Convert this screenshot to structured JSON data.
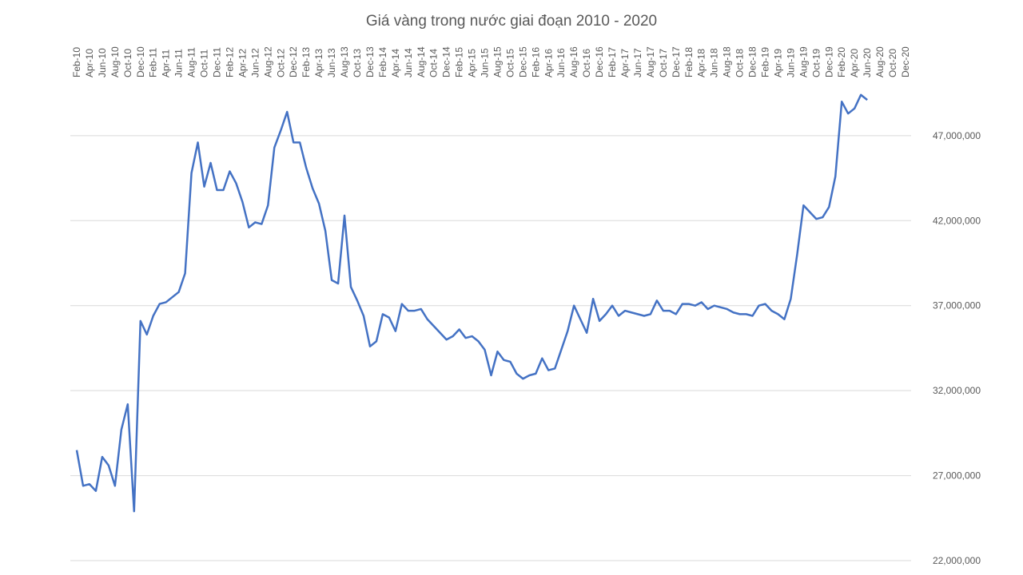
{
  "chart_data": {
    "type": "line",
    "title": "Giá vàng trong nước giai đoạn 2010 - 2020",
    "categories": [
      "Feb-10",
      null,
      "Apr-10",
      null,
      "Jun-10",
      null,
      "Aug-10",
      null,
      "Oct-10",
      null,
      "Dec-10",
      null,
      "Feb-11",
      null,
      "Apr-11",
      null,
      "Jun-11",
      null,
      "Aug-11",
      null,
      "Oct-11",
      null,
      "Dec-11",
      null,
      "Feb-12",
      null,
      "Apr-12",
      null,
      "Jun-12",
      null,
      "Aug-12",
      null,
      "Oct-12",
      null,
      "Dec-12",
      null,
      "Feb-13",
      null,
      "Apr-13",
      null,
      "Jun-13",
      null,
      "Aug-13",
      null,
      "Oct-13",
      null,
      "Dec-13",
      null,
      "Feb-14",
      null,
      "Apr-14",
      null,
      "Jun-14",
      null,
      "Aug-14",
      null,
      "Oct-14",
      null,
      "Dec-14",
      null,
      "Feb-15",
      null,
      "Apr-15",
      null,
      "Jun-15",
      null,
      "Aug-15",
      null,
      "Oct-15",
      null,
      "Dec-15",
      null,
      "Feb-16",
      null,
      "Apr-16",
      null,
      "Jun-16",
      null,
      "Aug-16",
      null,
      "Oct-16",
      null,
      "Dec-16",
      null,
      "Feb-17",
      null,
      "Apr-17",
      null,
      "Jun-17",
      null,
      "Aug-17",
      null,
      "Oct-17",
      null,
      "Dec-17",
      null,
      "Feb-18",
      null,
      "Apr-18",
      null,
      "Jun-18",
      null,
      "Aug-18",
      null,
      "Oct-18",
      null,
      "Dec-18",
      null,
      "Feb-19",
      null,
      "Apr-19",
      null,
      "Jun-19",
      null,
      "Aug-19",
      null,
      "Oct-19",
      null,
      "Dec-19",
      null,
      "Feb-20",
      null,
      "Apr-20",
      null,
      "Jun-20",
      null,
      "Aug-20",
      null,
      "Oct-20",
      null,
      "Dec-20"
    ],
    "series": [
      {
        "color": "#4472c4",
        "values": [
          28500000,
          26400000,
          26500000,
          26100000,
          28100000,
          27600000,
          26400000,
          29700000,
          31200000,
          24900000,
          36100000,
          35300000,
          36400000,
          37100000,
          37200000,
          37500000,
          37800000,
          38900000,
          44800000,
          46600000,
          44000000,
          45400000,
          43800000,
          43800000,
          44900000,
          44200000,
          43100000,
          41600000,
          41900000,
          41800000,
          42900000,
          46300000,
          47300000,
          48400000,
          46600000,
          46600000,
          45100000,
          43900000,
          43000000,
          41400000,
          38500000,
          38300000,
          42300000,
          38100000,
          37300000,
          36400000,
          34600000,
          34900000,
          36500000,
          36300000,
          35500000,
          37100000,
          36700000,
          36700000,
          36800000,
          36200000,
          35800000,
          35400000,
          35000000,
          35200000,
          35600000,
          35100000,
          35200000,
          34900000,
          34400000,
          32900000,
          34300000,
          33800000,
          33700000,
          33000000,
          32700000,
          32900000,
          33000000,
          33900000,
          33200000,
          33300000,
          34400000,
          35500000,
          37000000,
          36200000,
          35400000,
          37400000,
          36100000,
          36500000,
          37000000,
          36400000,
          36700000,
          36600000,
          36500000,
          36400000,
          36500000,
          37300000,
          36700000,
          36700000,
          36500000,
          37100000,
          37100000,
          37000000,
          37200000,
          36800000,
          37000000,
          36900000,
          36800000,
          36600000,
          36500000,
          36500000,
          36400000,
          37000000,
          37100000,
          36700000,
          36500000,
          36200000,
          37400000,
          40000000,
          42900000,
          42500000,
          42100000,
          42200000,
          42800000,
          44600000,
          49000000,
          48300000,
          48600000,
          49400000,
          49100000,
          null,
          null,
          null,
          null,
          null,
          null
        ]
      }
    ],
    "ylim": [
      22000000,
      50000000
    ],
    "yticks": [
      {
        "value": 22000000,
        "label": "22,000,000"
      },
      {
        "value": 27000000,
        "label": "27,000,000"
      },
      {
        "value": 32000000,
        "label": "32,000,000"
      },
      {
        "value": 37000000,
        "label": "37,000,000"
      },
      {
        "value": 42000000,
        "label": "42,000,000"
      },
      {
        "value": 47000000,
        "label": "47,000,000"
      }
    ],
    "grid": true
  }
}
